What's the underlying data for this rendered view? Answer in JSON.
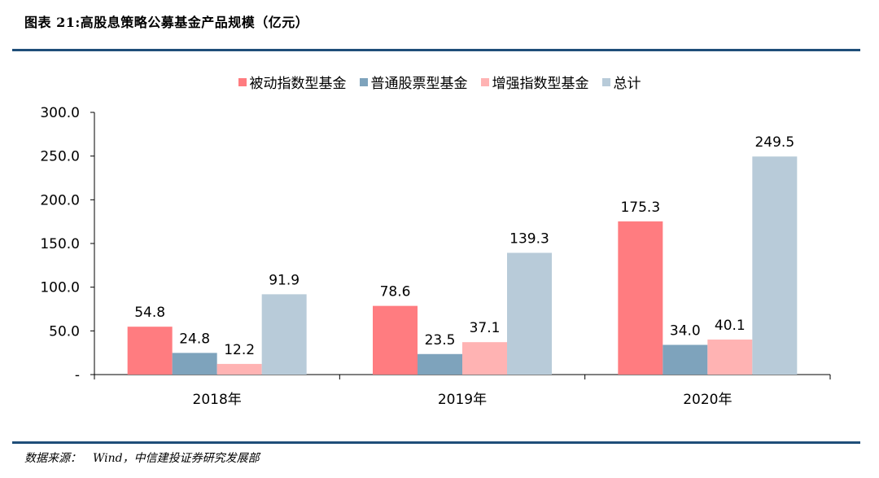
{
  "title": "图表  21:高股息策略公募基金产品规模（亿元）",
  "source": {
    "label": "数据来源：",
    "text": "Wind，中信建投证券研究发展部"
  },
  "chart_data": {
    "type": "bar",
    "title": "",
    "xlabel": "",
    "ylabel": "",
    "categories": [
      "2018年",
      "2019年",
      "2020年"
    ],
    "series": [
      {
        "name": "被动指数型基金",
        "color": "#ff7c80",
        "values": [
          54.8,
          78.6,
          175.3
        ]
      },
      {
        "name": "普通股票型基金",
        "color": "#7ea3bc",
        "values": [
          24.8,
          23.5,
          34.0
        ]
      },
      {
        "name": "增强指数型基金",
        "color": "#ffb3b3",
        "values": [
          12.2,
          37.1,
          40.1
        ]
      },
      {
        "name": "总计",
        "color": "#b8cbd9",
        "values": [
          91.9,
          139.3,
          249.5
        ]
      }
    ],
    "yticks": [
      "-",
      "50.0",
      "100.0",
      "150.0",
      "200.0",
      "250.0",
      "300.0"
    ],
    "ylim": [
      0,
      300
    ],
    "legend_position": "top-center",
    "grid": false
  }
}
